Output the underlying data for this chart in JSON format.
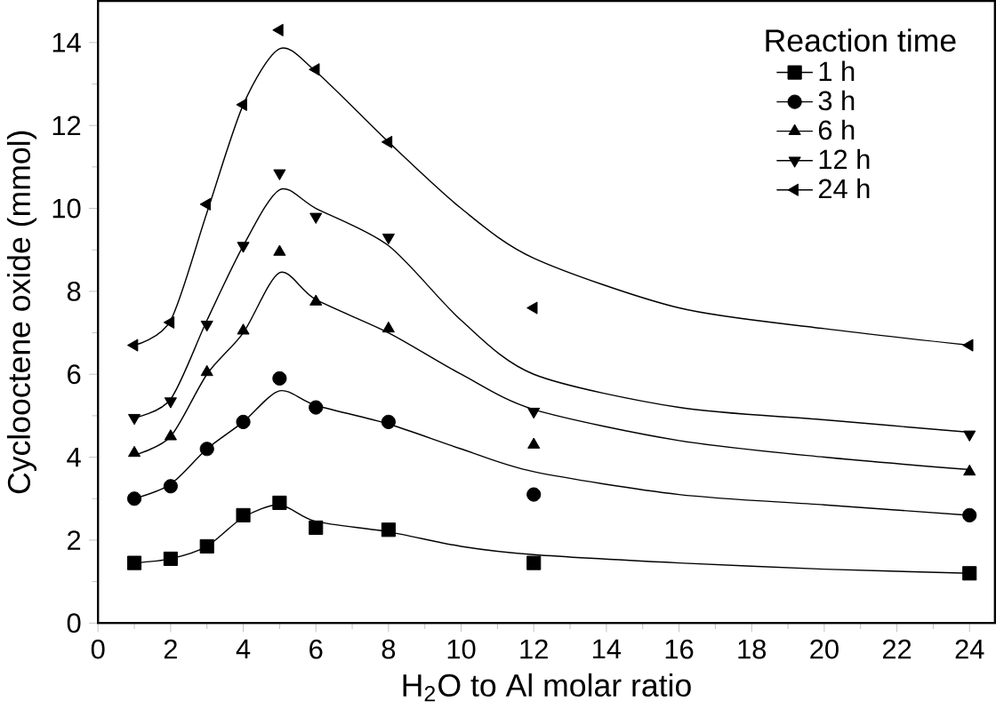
{
  "chart_data": {
    "type": "scatter",
    "xlabel": "H$_{2}$O to Al molar ratio",
    "ylabel": "Cyclooctene oxide (mmol)",
    "legend_title": "Reaction time",
    "legend": "top right",
    "grid": false,
    "xlim": [
      0,
      24.7
    ],
    "ylim": [
      0,
      15
    ],
    "xticks": [
      0,
      2,
      4,
      6,
      8,
      10,
      12,
      14,
      16,
      18,
      20,
      22,
      24
    ],
    "yticks": [
      0,
      2,
      4,
      6,
      8,
      10,
      12,
      14
    ],
    "x": [
      1,
      2,
      3,
      4,
      5,
      6,
      8,
      12,
      24
    ],
    "series": [
      {
        "name": "1 h",
        "color": "#000000",
        "marker": "square",
        "values": [
          1.45,
          1.55,
          1.85,
          2.6,
          2.9,
          2.3,
          2.25,
          1.45,
          1.2
        ]
      },
      {
        "name": "3 h",
        "color": "#000000",
        "marker": "circle",
        "values": [
          3.0,
          3.3,
          4.2,
          4.85,
          5.9,
          5.2,
          4.85,
          3.1,
          2.6
        ]
      },
      {
        "name": "6 h",
        "color": "#000000",
        "marker": "triangle",
        "values": [
          4.1,
          4.5,
          6.05,
          7.05,
          8.95,
          7.75,
          7.1,
          4.3,
          3.65
        ]
      },
      {
        "name": "12 h",
        "color": "#000000",
        "marker": "triangle down",
        "values": [
          4.95,
          5.35,
          7.2,
          9.1,
          10.85,
          9.8,
          9.3,
          5.1,
          4.55
        ]
      },
      {
        "name": "24 h",
        "color": "#000000",
        "marker": "triangle left",
        "values": [
          6.7,
          7.25,
          10.1,
          12.5,
          14.3,
          13.35,
          11.6,
          7.6,
          6.7
        ]
      },
      {
        "type": "line",
        "color": "#000000",
        "marker": "none",
        "x": [
          1,
          2,
          3,
          4,
          5,
          6,
          8,
          10,
          12,
          16,
          20,
          24
        ],
        "values": [
          1.45,
          1.55,
          1.85,
          2.55,
          2.85,
          2.45,
          2.2,
          1.85,
          1.65,
          1.45,
          1.3,
          1.2
        ]
      },
      {
        "type": "line",
        "color": "#000000",
        "marker": "none",
        "x": [
          1,
          2,
          3,
          4,
          5,
          6,
          8,
          10,
          12,
          16,
          20,
          24
        ],
        "values": [
          3.0,
          3.35,
          4.2,
          4.85,
          5.6,
          5.25,
          4.8,
          4.2,
          3.65,
          3.1,
          2.85,
          2.6
        ]
      },
      {
        "type": "line",
        "color": "#000000",
        "marker": "none",
        "x": [
          1,
          2,
          3,
          4,
          5,
          6,
          8,
          10,
          12,
          16,
          20,
          24
        ],
        "values": [
          4.05,
          4.5,
          6.0,
          7.0,
          8.45,
          7.8,
          7.0,
          6.0,
          5.15,
          4.4,
          4.0,
          3.7
        ]
      },
      {
        "type": "line",
        "color": "#000000",
        "marker": "none",
        "x": [
          1,
          2,
          3,
          4,
          5,
          6,
          8,
          10,
          12,
          16,
          20,
          24
        ],
        "values": [
          4.95,
          5.4,
          7.3,
          9.1,
          10.45,
          10.0,
          9.1,
          7.3,
          6.0,
          5.2,
          4.9,
          4.6
        ]
      },
      {
        "type": "line",
        "color": "#000000",
        "marker": "none",
        "x": [
          1,
          2,
          3,
          4,
          5,
          6,
          8,
          10,
          12,
          16,
          20,
          24
        ],
        "values": [
          6.7,
          7.3,
          9.9,
          12.5,
          13.85,
          13.3,
          11.6,
          10.0,
          8.8,
          7.6,
          7.1,
          6.7
        ]
      }
    ]
  }
}
